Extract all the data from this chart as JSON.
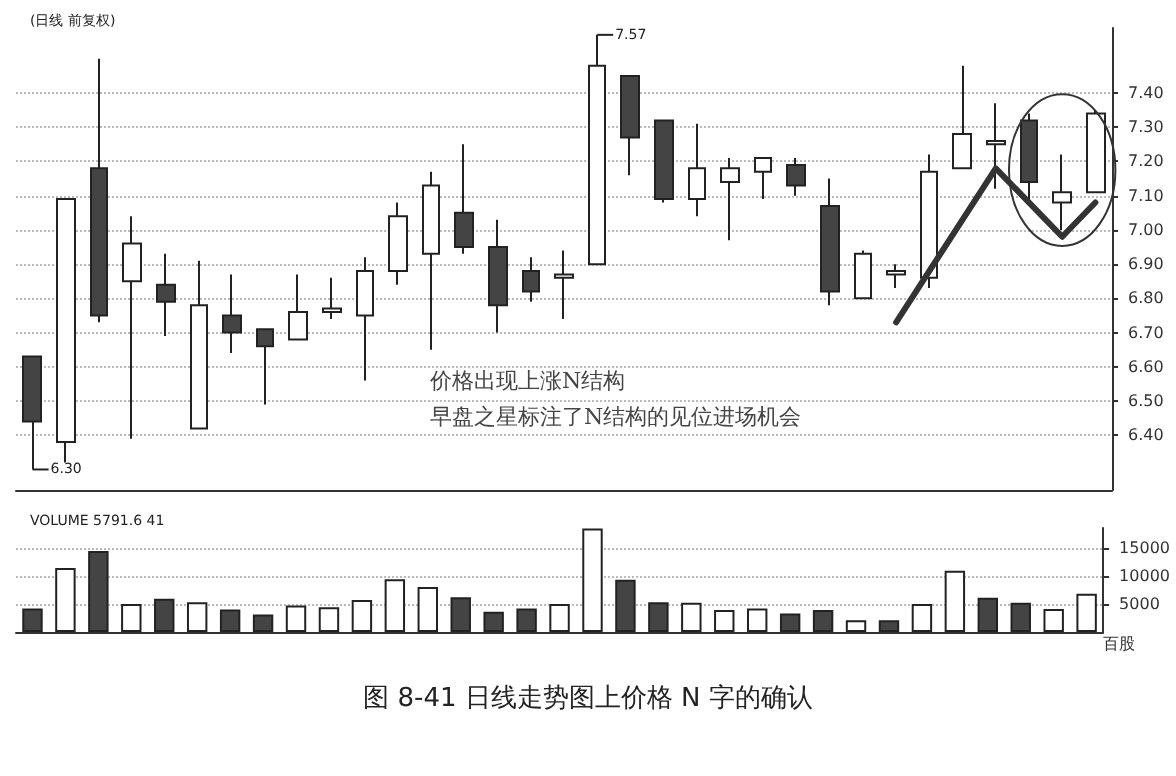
{
  "chart_data": [
    {
      "type": "candlestick",
      "title": "(日线 前复权)",
      "categories": [
        null,
        null,
        null,
        null,
        null,
        null,
        null,
        null,
        null,
        null,
        null,
        null,
        null,
        null,
        null,
        null,
        null,
        null,
        null,
        null,
        null,
        null,
        null,
        null,
        null,
        null,
        null,
        null,
        null,
        null,
        null,
        null,
        null
      ],
      "ohlc": [
        [
          6.63,
          6.63,
          6.3,
          6.44
        ],
        [
          6.38,
          7.09,
          6.32,
          7.09
        ],
        [
          7.18,
          7.5,
          6.73,
          6.75
        ],
        [
          6.85,
          7.04,
          6.39,
          6.96
        ],
        [
          6.84,
          6.93,
          6.69,
          6.79
        ],
        [
          6.42,
          6.91,
          6.42,
          6.78
        ],
        [
          6.75,
          6.87,
          6.64,
          6.7
        ],
        [
          6.71,
          6.71,
          6.49,
          6.66
        ],
        [
          6.68,
          6.87,
          6.68,
          6.76
        ],
        [
          6.76,
          6.86,
          6.74,
          6.77
        ],
        [
          6.75,
          6.92,
          6.56,
          6.88
        ],
        [
          6.88,
          7.08,
          6.84,
          7.04
        ],
        [
          6.93,
          7.17,
          6.65,
          7.13
        ],
        [
          7.05,
          7.25,
          6.93,
          6.95
        ],
        [
          6.95,
          7.03,
          6.7,
          6.78
        ],
        [
          6.88,
          6.92,
          6.79,
          6.82
        ],
        [
          6.86,
          6.94,
          6.74,
          6.87
        ],
        [
          6.9,
          7.57,
          6.9,
          7.48
        ],
        [
          7.45,
          7.45,
          7.16,
          7.27
        ],
        [
          7.32,
          7.32,
          7.08,
          7.09
        ],
        [
          7.09,
          7.31,
          7.04,
          7.18
        ],
        [
          7.14,
          7.21,
          6.97,
          7.18
        ],
        [
          7.17,
          7.21,
          7.09,
          7.21
        ],
        [
          7.19,
          7.21,
          7.1,
          7.13
        ],
        [
          7.07,
          7.15,
          6.78,
          6.82
        ],
        [
          6.8,
          6.94,
          6.8,
          6.93
        ],
        [
          6.87,
          6.9,
          6.83,
          6.88
        ],
        [
          6.86,
          7.22,
          6.83,
          7.17
        ],
        [
          7.18,
          7.48,
          7.18,
          7.28
        ],
        [
          7.25,
          7.37,
          7.12,
          7.26
        ],
        [
          7.32,
          7.34,
          7.08,
          7.14
        ],
        [
          7.08,
          7.22,
          7.0,
          7.11
        ],
        [
          7.11,
          7.35,
          7.11,
          7.34
        ]
      ],
      "series": [
        {
          "type": "line",
          "color": "#333333",
          "values": [
            null,
            null,
            null,
            null,
            null,
            null,
            null,
            null,
            null,
            null,
            null,
            null,
            null,
            null,
            null,
            null,
            null,
            null,
            null,
            null,
            null,
            null,
            null,
            null,
            null,
            null,
            6.73,
            null,
            null,
            7.18,
            null,
            6.98,
            7.08
          ]
        }
      ],
      "ylim": [
        6.24,
        7.59
      ],
      "yticks": [
        {
          "value": 6.4,
          "label": "6.40"
        },
        {
          "value": 6.5,
          "label": "6.50"
        },
        {
          "value": 6.6,
          "label": "6.60"
        },
        {
          "value": 6.7,
          "label": "6.70"
        },
        {
          "value": 6.8,
          "label": "6.80"
        },
        {
          "value": 6.9,
          "label": "6.90"
        },
        {
          "value": 7.0,
          "label": "7.00"
        },
        {
          "value": 7.1,
          "label": "7.10"
        },
        {
          "value": 7.2,
          "label": "7.20"
        },
        {
          "value": 7.3,
          "label": "7.30"
        },
        {
          "value": 7.4,
          "label": "7.40"
        }
      ],
      "tick_labels": "y",
      "grid": "y",
      "annotations": [
        "7.57",
        "6.30",
        "价格出现上涨N结构",
        "早盘之星标注了N结构的见位进场机会"
      ]
    },
    {
      "type": "bar",
      "title": "VOLUME 5791.6 41",
      "ylabel": "百股",
      "categories": [
        null,
        null,
        null,
        null,
        null,
        null,
        null,
        null,
        null,
        null,
        null,
        null,
        null,
        null,
        null,
        null,
        null,
        null,
        null,
        null,
        null,
        null,
        null,
        null,
        null,
        null,
        null,
        null,
        null,
        null,
        null,
        null,
        null
      ],
      "values": [
        4200,
        11400,
        14400,
        5000,
        5900,
        5300,
        4000,
        3100,
        4700,
        4400,
        5700,
        9400,
        8000,
        6200,
        3600,
        4200,
        5000,
        18400,
        9300,
        5300,
        5200,
        3900,
        4200,
        3300,
        3900,
        2100,
        2100,
        5000,
        10900,
        6100,
        5200,
        4100,
        6800
      ],
      "colors": [
        "#444444",
        "#ffffff",
        "#444444",
        "#ffffff",
        "#444444",
        "#ffffff",
        "#444444",
        "#444444",
        "#ffffff",
        "#ffffff",
        "#ffffff",
        "#ffffff",
        "#ffffff",
        "#444444",
        "#444444",
        "#444444",
        "#ffffff",
        "#ffffff",
        "#444444",
        "#444444",
        "#ffffff",
        "#ffffff",
        "#ffffff",
        "#444444",
        "#444444",
        "#ffffff",
        "#444444",
        "#ffffff",
        "#ffffff",
        "#444444",
        "#444444",
        "#ffffff",
        "#ffffff"
      ],
      "ylim": [
        0,
        18500
      ],
      "yticks": [
        5000,
        10000,
        15000
      ],
      "tick_labels": "y",
      "grid": "y",
      "annotations": [
        "图 8-41 日线走势图上价格 N 字的确认"
      ]
    }
  ]
}
